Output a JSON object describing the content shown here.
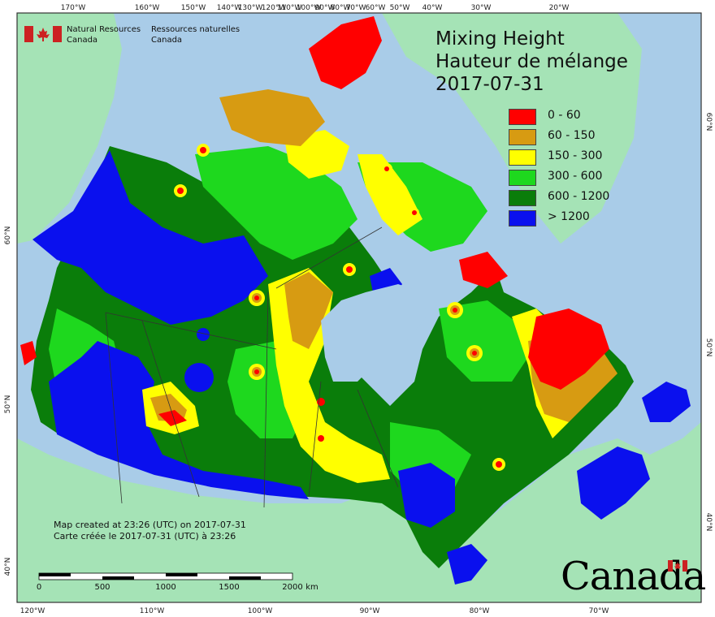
{
  "agency": {
    "name_en_line1": "Natural Resources",
    "name_en_line2": "Canada",
    "name_fr_line1": "Ressources naturelles",
    "name_fr_line2": "Canada"
  },
  "title": {
    "line1": "Mixing Height",
    "line2": "Hauteur de mélange",
    "date": "2017-07-31"
  },
  "legend": {
    "items": [
      {
        "label": "0 - 60",
        "color": "#ff0000"
      },
      {
        "label": "60 - 150",
        "color": "#d79b12"
      },
      {
        "label": "150 - 300",
        "color": "#ffff00"
      },
      {
        "label": "300 - 600",
        "color": "#1ed81e"
      },
      {
        "label": "600 - 1200",
        "color": "#0a7d0a"
      },
      {
        "label": "> 1200",
        "color": "#0a10ee"
      }
    ]
  },
  "credits": {
    "line_en": "Map created at 23:26 (UTC) on 2017-07-31",
    "line_fr": "Carte créée le 2017-07-31 (UTC) à 23:26"
  },
  "scale": {
    "labels": [
      "0",
      "500",
      "1000",
      "1500",
      "2000"
    ],
    "unit": "km"
  },
  "wordmark": "Canada",
  "graticule": {
    "top": [
      "170°W",
      "160°W",
      "150°W",
      "140°W",
      "120°W",
      "100°W",
      "80°W",
      "60°W",
      "50°W",
      "40°W",
      "30°W",
      "20°W",
      "130°W",
      "110°W",
      "90°W",
      "70°W"
    ],
    "bottom": [
      "120°W",
      "110°W",
      "100°W",
      "90°W",
      "80°W",
      "70°W"
    ],
    "left": [
      "60°N",
      "50°N",
      "40°N"
    ],
    "right": [
      "60°N",
      "50°N",
      "40°N"
    ]
  },
  "colors": {
    "ocean": "#a9cce8",
    "land_outside": "#a5e3b6",
    "frame": "#333333"
  }
}
